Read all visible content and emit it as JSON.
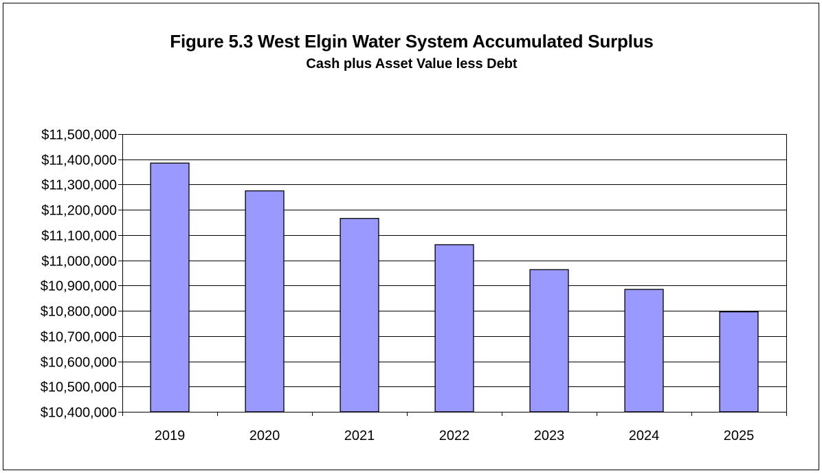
{
  "chart_data": {
    "type": "bar",
    "title": "Figure 5.3 West Elgin Water System Accumulated Surplus",
    "subtitle": "Cash plus Asset Value less Debt",
    "xlabel": "",
    "ylabel": "",
    "categories": [
      "2019",
      "2020",
      "2021",
      "2022",
      "2023",
      "2024",
      "2025"
    ],
    "values": [
      11385000,
      11275000,
      11166000,
      11062000,
      10963000,
      10885000,
      10796000
    ],
    "ylim": [
      10400000,
      11500000
    ],
    "yticks": [
      10400000,
      10500000,
      10600000,
      10700000,
      10800000,
      10900000,
      11000000,
      11100000,
      11200000,
      11300000,
      11400000,
      11500000
    ],
    "ytick_labels": [
      "$10,400,000",
      "$10,500,000",
      "$10,600,000",
      "$10,700,000",
      "$10,800,000",
      "$10,900,000",
      "$11,000,000",
      "$11,100,000",
      "$11,200,000",
      "$11,300,000",
      "$11,400,000",
      "$11,500,000"
    ],
    "grid": true,
    "legend": "none",
    "colors": {
      "bar": "#9999ff",
      "bar_edge": "#000000",
      "grid": "#000000"
    }
  }
}
